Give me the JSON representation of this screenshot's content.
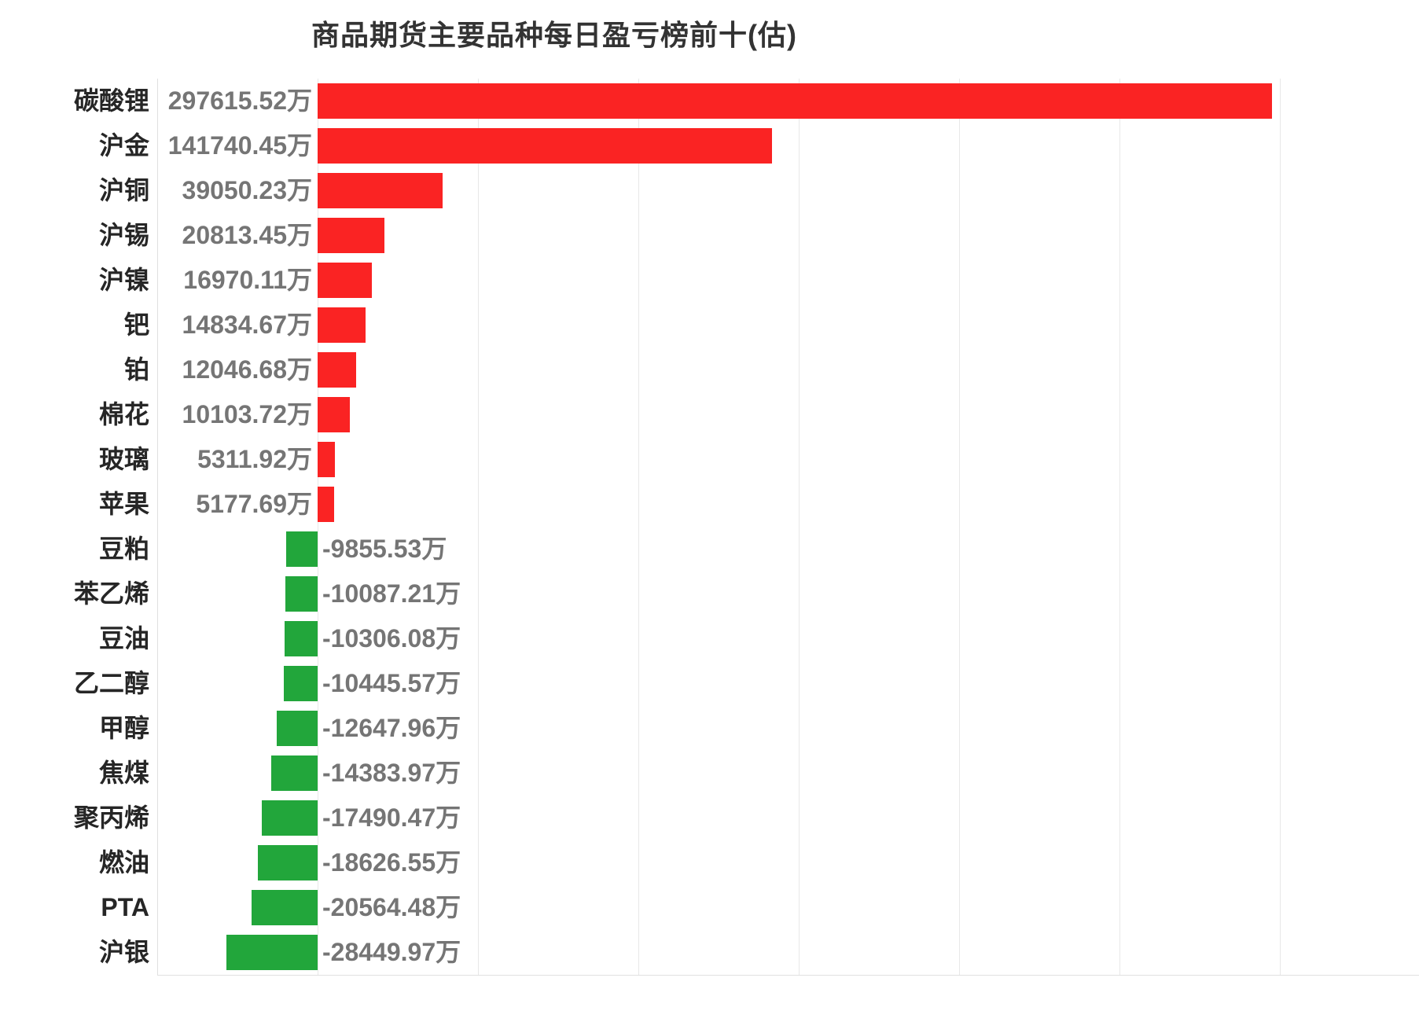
{
  "title": "商品期货主要品种每日盈亏榜前十(估)",
  "colors": {
    "positive_bar": "#fa2323",
    "negative_bar": "#22a63b",
    "gridline": "#e8e8e8",
    "axis_line": "#e0e0e0",
    "category_text": "#262626",
    "value_text": "#757575",
    "title_text": "#333333"
  },
  "chart_data": {
    "type": "bar",
    "orientation": "horizontal",
    "title": "商品期货主要品种每日盈亏榜前十(估)",
    "unit": "万",
    "grid": true,
    "xlim": [
      -50000,
      300000
    ],
    "grid_interval": 50000,
    "legend": "none",
    "categories": [
      "碳酸锂",
      "沪金",
      "沪铜",
      "沪锡",
      "沪镍",
      "钯",
      "铂",
      "棉花",
      "玻璃",
      "苹果",
      "豆粕",
      "苯乙烯",
      "豆油",
      "乙二醇",
      "甲醇",
      "焦煤",
      "聚丙烯",
      "燃油",
      "PTA",
      "沪银"
    ],
    "values": [
      297615.52,
      141740.45,
      39050.23,
      20813.45,
      16970.11,
      14834.67,
      12046.68,
      10103.72,
      5311.92,
      5177.69,
      -9855.53,
      -10087.21,
      -10306.08,
      -10445.57,
      -12647.96,
      -14383.97,
      -17490.47,
      -18626.55,
      -20564.48,
      -28449.97
    ],
    "value_labels": [
      "297615.52万",
      "141740.45万",
      "39050.23万",
      "20813.45万",
      "16970.11万",
      "14834.67万",
      "12046.68万",
      "10103.72万",
      "5311.92万",
      "5177.69万",
      "-9855.53万",
      "-10087.21万",
      "-10306.08万",
      "-10445.57万",
      "-12647.96万",
      "-14383.97万",
      "-17490.47万",
      "-18626.55万",
      "-20564.48万",
      "-28449.97万"
    ]
  }
}
